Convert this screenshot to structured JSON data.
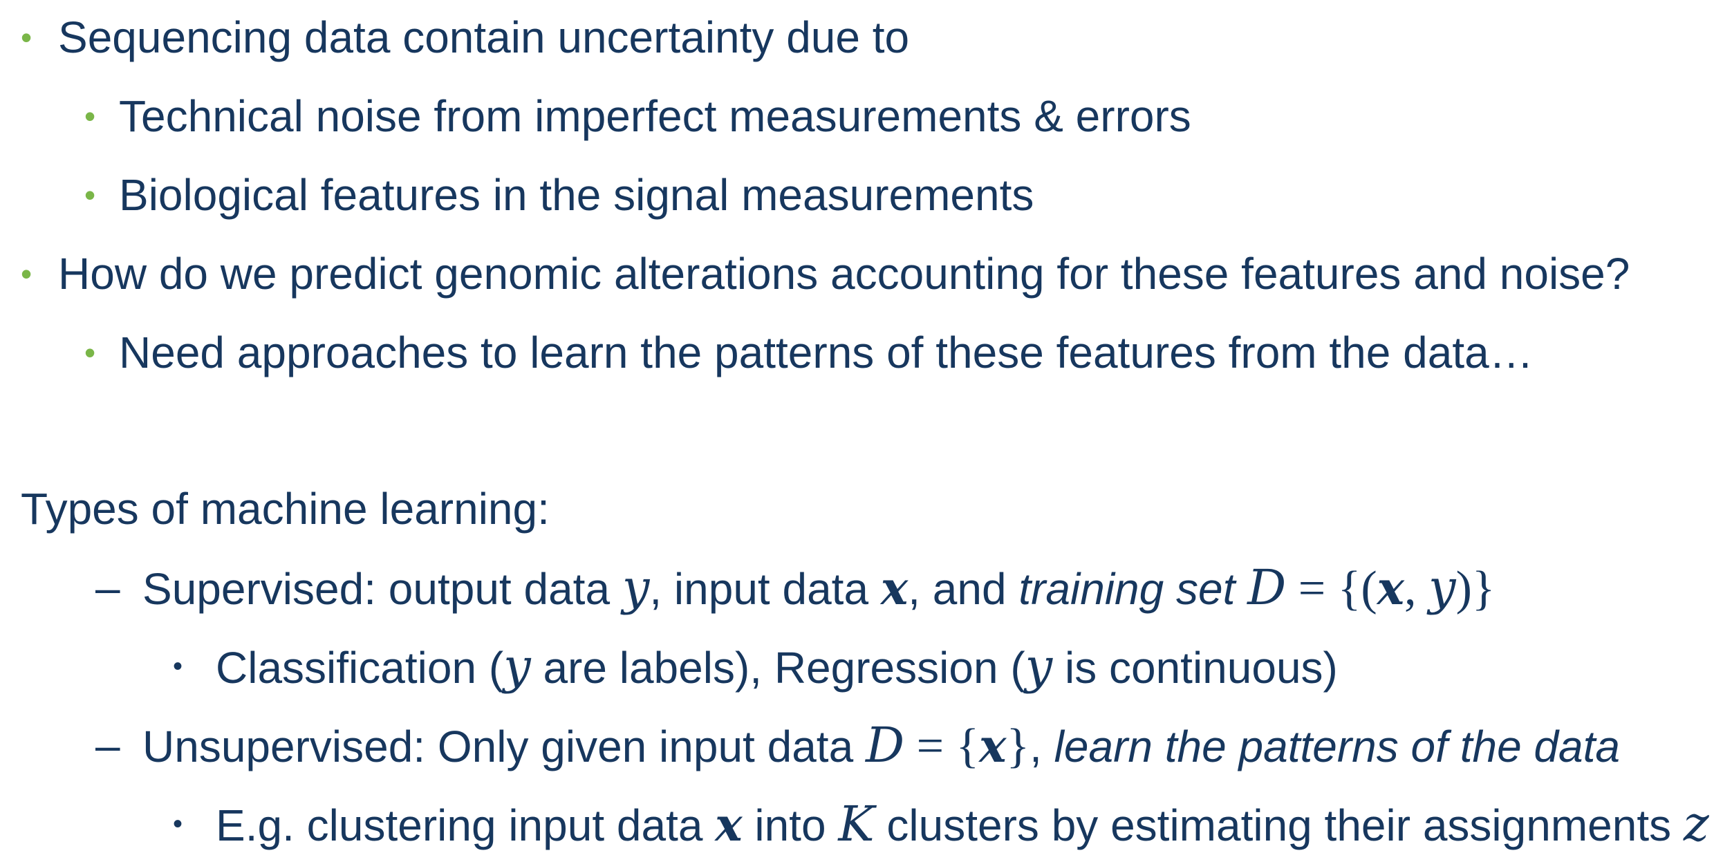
{
  "bullets": {
    "b1": "Sequencing data contain uncertainty due to",
    "b1_1": "Technical noise from imperfect measurements & errors",
    "b1_2": "Biological features in the signal measurements",
    "b2": "How do we predict genomic alterations accounting for these features and noise?",
    "b2_1": "Need approaches to learn the patterns of these features from the data…"
  },
  "types_heading": "Types of machine learning:",
  "supervised": {
    "dash": "–",
    "label": "Supervised: output data ",
    "y": "y",
    "input_text": ", input data ",
    "x": "x",
    "and_text": ", and ",
    "training_set": "training set ",
    "D": "D",
    "eq": " = {(",
    "x2": "x",
    "comma": ", ",
    "y2": "y",
    "close": ")}"
  },
  "classification": {
    "text1": "Classification (",
    "y": "y",
    "text2": " are labels), Regression (",
    "y2": "y",
    "text3": " is continuous)"
  },
  "unsupervised": {
    "dash": "–",
    "label": "Unsupervised: Only given input data ",
    "D": "D",
    "eq": " = {",
    "x": "x",
    "close": "}",
    "sep": ", ",
    "learn": "learn the patterns of the data"
  },
  "clustering": {
    "text1": "E.g. clustering input data ",
    "x": "x",
    "text2": " into ",
    "K": "K",
    "text3": " clusters by estimating their assignments ",
    "z": "z"
  },
  "colors": {
    "text": "#17375e",
    "bullet_accent": "#7ab648"
  }
}
